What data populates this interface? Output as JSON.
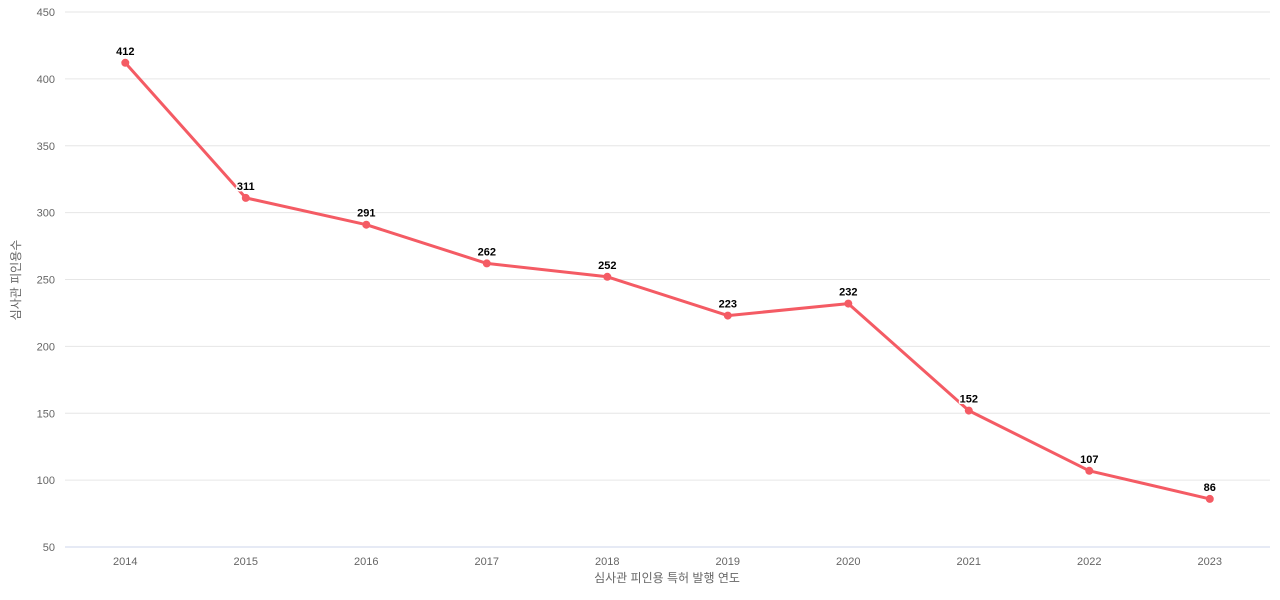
{
  "chart_data": {
    "type": "line",
    "title": "",
    "categories": [
      "2014",
      "2015",
      "2016",
      "2017",
      "2018",
      "2019",
      "2020",
      "2021",
      "2022",
      "2023"
    ],
    "series": [
      {
        "name": "심사관 피인용수",
        "values": [
          412,
          311,
          291,
          262,
          252,
          223,
          232,
          152,
          107,
          86
        ]
      }
    ],
    "xlabel": "심사관 피인용 특허 발행 연도",
    "ylabel": "심사관 피인용수",
    "ylim": [
      50,
      450
    ],
    "ytick_step": 50,
    "grid": true,
    "legend": "none",
    "colors": {
      "line": "#f45b64",
      "marker": "#f45b64",
      "gridline": "#e6e6e6",
      "axis_line": "#ccd6eb",
      "tick_label": "#666666",
      "axis_title": "#666666",
      "data_label": "#000000",
      "background": "#ffffff"
    }
  }
}
